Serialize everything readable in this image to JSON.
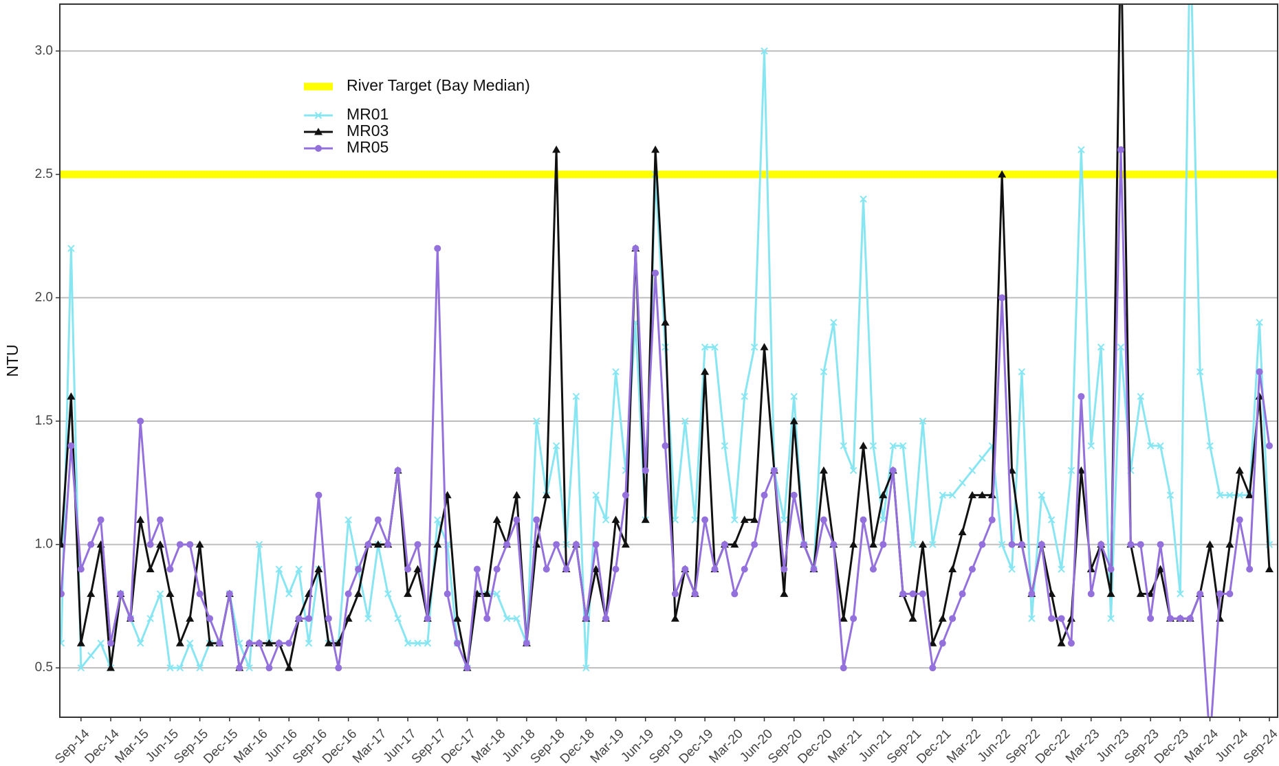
{
  "chart_data": {
    "type": "line",
    "y_label": "NTU",
    "categories": [
      null,
      null,
      "Sep-14",
      null,
      null,
      "Dec-14",
      null,
      null,
      "Mar-15",
      null,
      null,
      "Jun-15",
      null,
      null,
      "Sep-15",
      null,
      null,
      "Dec-15",
      null,
      null,
      "Mar-16",
      null,
      null,
      "Jun-16",
      null,
      null,
      "Sep-16",
      null,
      null,
      "Dec-16",
      null,
      null,
      "Mar-17",
      null,
      null,
      "Jun-17",
      null,
      null,
      "Sep-17",
      null,
      null,
      "Dec-17",
      null,
      null,
      "Mar-18",
      null,
      null,
      "Jun-18",
      null,
      null,
      "Sep-18",
      null,
      null,
      "Dec-18",
      null,
      null,
      "Mar-19",
      null,
      null,
      "Jun-19",
      null,
      null,
      "Sep-19",
      null,
      null,
      "Dec-19",
      null,
      null,
      "Mar-20",
      null,
      null,
      "Jun-20",
      null,
      null,
      "Sep-20",
      null,
      null,
      "Dec-20",
      null,
      null,
      "Mar-21",
      null,
      null,
      "Jun-21",
      null,
      null,
      "Sep-21",
      null,
      null,
      "Dec-21",
      null,
      null,
      "Mar-22",
      null,
      null,
      "Jun-22",
      null,
      null,
      "Sep-22",
      null,
      null,
      "Dec-22",
      null,
      null,
      "Mar-23",
      null,
      null,
      "Jun-23",
      null,
      null,
      "Sep-23",
      null,
      null,
      "Dec-23",
      null,
      null,
      "Mar-24",
      null,
      null,
      "Jun-24",
      null,
      null,
      "Sep-24"
    ],
    "series": [
      {
        "name": "MR01",
        "color": "#87e6f2",
        "marker": "x",
        "values": [
          0.6,
          2.2,
          0.5,
          0.55,
          0.6,
          0.5,
          0.8,
          0.7,
          0.6,
          0.7,
          0.8,
          0.5,
          0.5,
          0.6,
          0.5,
          0.6,
          0.6,
          0.8,
          0.6,
          0.5,
          1.0,
          0.6,
          0.9,
          0.8,
          0.9,
          0.6,
          0.9,
          0.6,
          0.6,
          1.1,
          0.9,
          0.7,
          1.0,
          0.8,
          0.7,
          0.6,
          0.6,
          0.6,
          1.1,
          1.0,
          0.6,
          0.5,
          0.8,
          0.8,
          0.8,
          0.7,
          0.7,
          0.6,
          1.5,
          1.2,
          1.4,
          1.0,
          1.6,
          0.5,
          1.2,
          1.1,
          1.7,
          1.3,
          1.9,
          1.1,
          2.5,
          1.8,
          1.1,
          1.5,
          1.1,
          1.8,
          1.8,
          1.4,
          1.1,
          1.6,
          1.8,
          3.0,
          1.3,
          1.1,
          1.6,
          1.0,
          0.9,
          1.7,
          1.9,
          1.4,
          1.3,
          2.4,
          1.4,
          1.1,
          1.4,
          1.4,
          1.0,
          1.5,
          1.0,
          1.2,
          1.2,
          1.25,
          1.3,
          1.35,
          1.4,
          1.0,
          0.9,
          1.7,
          0.7,
          1.2,
          1.1,
          0.9,
          1.3,
          2.6,
          1.4,
          1.8,
          0.7,
          1.8,
          1.3,
          1.6,
          1.4,
          1.4,
          1.2,
          0.8,
          3.5,
          1.7,
          1.4,
          1.2,
          1.2,
          1.2,
          1.2,
          1.9,
          1.0
        ]
      },
      {
        "name": "MR03",
        "color": "#111111",
        "marker": "triangle",
        "values": [
          1.0,
          1.6,
          0.6,
          0.8,
          1.0,
          0.5,
          0.8,
          0.7,
          1.1,
          0.9,
          1.0,
          0.8,
          0.6,
          0.7,
          1.0,
          0.6,
          0.6,
          0.8,
          0.5,
          0.6,
          0.6,
          0.6,
          0.6,
          0.5,
          0.7,
          0.8,
          0.9,
          0.6,
          0.6,
          0.7,
          0.8,
          1.0,
          1.0,
          1.0,
          1.3,
          0.8,
          0.9,
          0.7,
          1.0,
          1.2,
          0.7,
          0.5,
          0.8,
          0.8,
          1.1,
          1.0,
          1.2,
          0.6,
          1.0,
          1.2,
          2.6,
          0.9,
          1.0,
          0.7,
          0.9,
          0.7,
          1.1,
          1.0,
          2.2,
          1.1,
          2.6,
          1.9,
          0.7,
          0.9,
          0.8,
          1.7,
          0.9,
          1.0,
          1.0,
          1.1,
          1.1,
          1.8,
          1.3,
          0.8,
          1.5,
          1.0,
          0.9,
          1.3,
          1.0,
          0.7,
          1.0,
          1.4,
          1.0,
          1.2,
          1.3,
          0.8,
          0.7,
          1.0,
          0.6,
          0.7,
          0.9,
          1.05,
          1.2,
          1.2,
          1.2,
          2.5,
          1.3,
          1.0,
          0.8,
          1.0,
          0.8,
          0.6,
          0.7,
          1.3,
          0.9,
          1.0,
          0.8,
          3.5,
          1.0,
          0.8,
          0.8,
          0.9,
          0.7,
          0.7,
          0.7,
          0.8,
          1.0,
          0.7,
          1.0,
          1.3,
          1.2,
          1.6,
          0.9
        ]
      },
      {
        "name": "MR05",
        "color": "#9370db",
        "marker": "circle",
        "values": [
          0.8,
          1.4,
          0.9,
          1.0,
          1.1,
          0.6,
          0.8,
          0.7,
          1.5,
          1.0,
          1.1,
          0.9,
          1.0,
          1.0,
          0.8,
          0.7,
          0.6,
          0.8,
          0.5,
          0.6,
          0.6,
          0.5,
          0.6,
          0.6,
          0.7,
          0.7,
          1.2,
          0.7,
          0.5,
          0.8,
          0.9,
          1.0,
          1.1,
          1.0,
          1.3,
          0.9,
          1.0,
          0.7,
          2.2,
          0.8,
          0.6,
          0.5,
          0.9,
          0.7,
          0.9,
          1.0,
          1.1,
          0.6,
          1.1,
          0.9,
          1.0,
          0.9,
          1.0,
          0.7,
          1.0,
          0.7,
          0.9,
          1.2,
          2.2,
          1.3,
          2.1,
          1.4,
          0.8,
          0.9,
          0.8,
          1.1,
          0.9,
          1.0,
          0.8,
          0.9,
          1.0,
          1.2,
          1.3,
          0.9,
          1.2,
          1.0,
          0.9,
          1.1,
          1.0,
          0.5,
          0.7,
          1.1,
          0.9,
          1.0,
          1.3,
          0.8,
          0.8,
          0.8,
          0.5,
          0.6,
          0.7,
          0.8,
          0.9,
          1.0,
          1.1,
          2.0,
          1.0,
          1.0,
          0.8,
          1.0,
          0.7,
          0.7,
          0.6,
          1.6,
          0.8,
          1.0,
          0.9,
          2.6,
          1.0,
          1.0,
          0.7,
          1.0,
          0.7,
          0.7,
          0.7,
          0.8,
          0.2,
          0.8,
          0.8,
          1.1,
          0.9,
          1.7,
          1.4
        ]
      }
    ],
    "reference_line": {
      "name": "River Target (Bay Median)",
      "value": 2.5,
      "color": "#ffff00"
    },
    "ylim": [
      0.3,
      3.19
    ],
    "yticks": [
      {
        "value": 0.5,
        "label": "0.5"
      },
      {
        "value": 1,
        "label": "1.0"
      },
      {
        "value": 1.5,
        "label": "1.5"
      },
      {
        "value": 2,
        "label": "2.0"
      },
      {
        "value": 2.5,
        "label": "2.5"
      },
      {
        "value": 3,
        "label": "3.0"
      }
    ],
    "grid": true,
    "legend": "top-left"
  }
}
